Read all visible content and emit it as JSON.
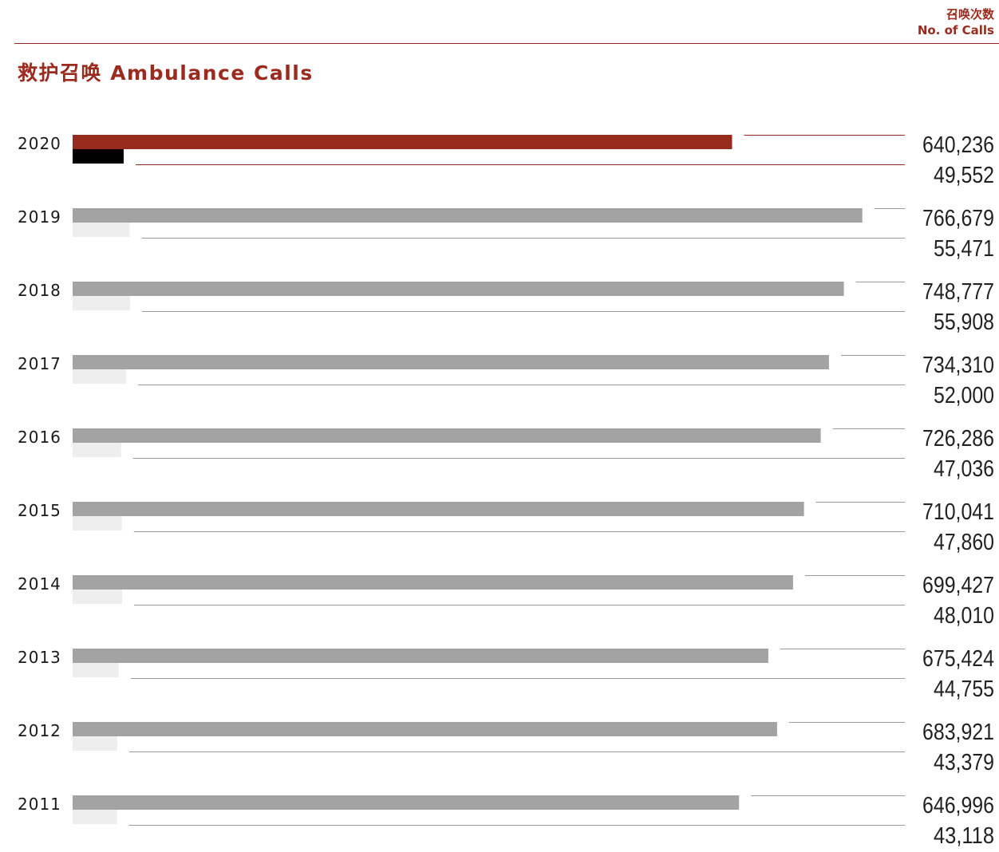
{
  "header": {
    "unit_zh": "召唤次数",
    "unit_en": "No. of Calls",
    "title": "救护召唤 Ambulance Calls"
  },
  "colors": {
    "accent": "#982c1c",
    "accent_secondary": "#000000",
    "bar_primary": "#a3a3a3",
    "bar_secondary": "#eeeeee",
    "rule": "#9a9a9a",
    "text": "#222222"
  },
  "chart_data": {
    "type": "bar",
    "orientation": "horizontal",
    "title": "救护召唤 Ambulance Calls",
    "unit": "召唤次数 No. of Calls",
    "categories": [
      "2020",
      "2019",
      "2018",
      "2017",
      "2016",
      "2015",
      "2014",
      "2013",
      "2012",
      "2011"
    ],
    "highlight_category": "2020",
    "series": [
      {
        "values": [
          640236,
          766679,
          748777,
          734310,
          726286,
          710041,
          699427,
          675424,
          683921,
          646996
        ],
        "labels": [
          "640,236",
          "766,679",
          "748,777",
          "734,310",
          "726,286",
          "710,041",
          "699,427",
          "675,424",
          "683,921",
          "646,996"
        ]
      },
      {
        "values": [
          49552,
          55471,
          55908,
          52000,
          47036,
          47860,
          48010,
          44755,
          43379,
          43118
        ],
        "labels": [
          "49,552",
          "55,471",
          "55,908",
          "52,000",
          "47,036",
          "47,860",
          "48,010",
          "44,755",
          "43,379",
          "43,118"
        ]
      }
    ],
    "xlim": [
      0,
      770000
    ],
    "grid": false,
    "legend": "none"
  }
}
